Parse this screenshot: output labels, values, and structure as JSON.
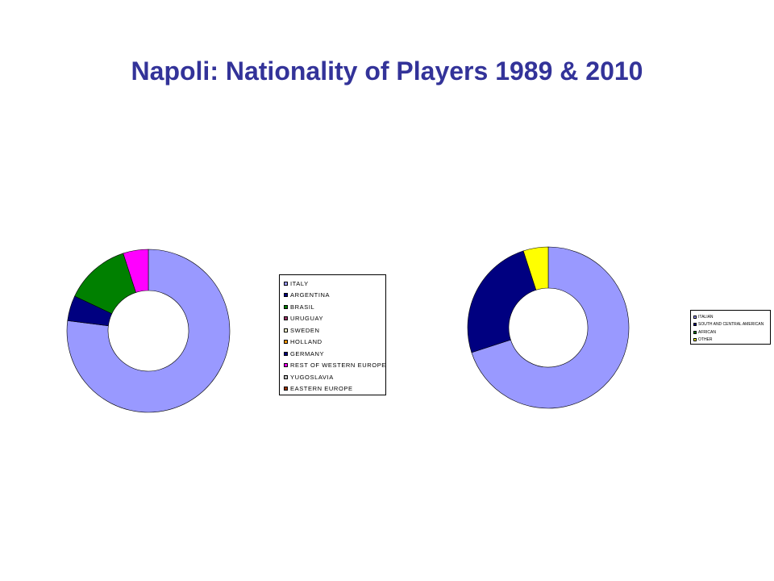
{
  "slide": {
    "title": "Napoli: Nationality of Players 1989 & 2010"
  },
  "chart_data": [
    {
      "type": "pie",
      "variant": "doughnut",
      "title": "",
      "categories": [
        "ITALY",
        "ARGENTINA",
        "BRASIL",
        "URUGUAY",
        "SWEDEN",
        "HOLLAND",
        "GERMANY",
        "REST OF WESTERN EUROPE",
        "YUGOSLAVIA",
        "EASTERN EUROPE"
      ],
      "values": [
        77,
        5,
        13,
        0,
        0,
        0,
        0,
        5,
        0,
        0
      ],
      "colors": [
        "#9999ff",
        "#000080",
        "#008000",
        "#993366",
        "#ffffcc",
        "#ff9900",
        "#000080",
        "#ff00ff",
        "#c0c0c0",
        "#993300"
      ],
      "legend": "right"
    },
    {
      "type": "pie",
      "variant": "doughnut",
      "title": "",
      "categories": [
        "ITALIAN",
        "SOUTH AND CENTRAL AMERICAN",
        "AFRICAN",
        "OTHER"
      ],
      "values": [
        70,
        25,
        0,
        5
      ],
      "colors": [
        "#9999ff",
        "#000080",
        "#008000",
        "#ffff00"
      ],
      "legend": "right"
    }
  ]
}
